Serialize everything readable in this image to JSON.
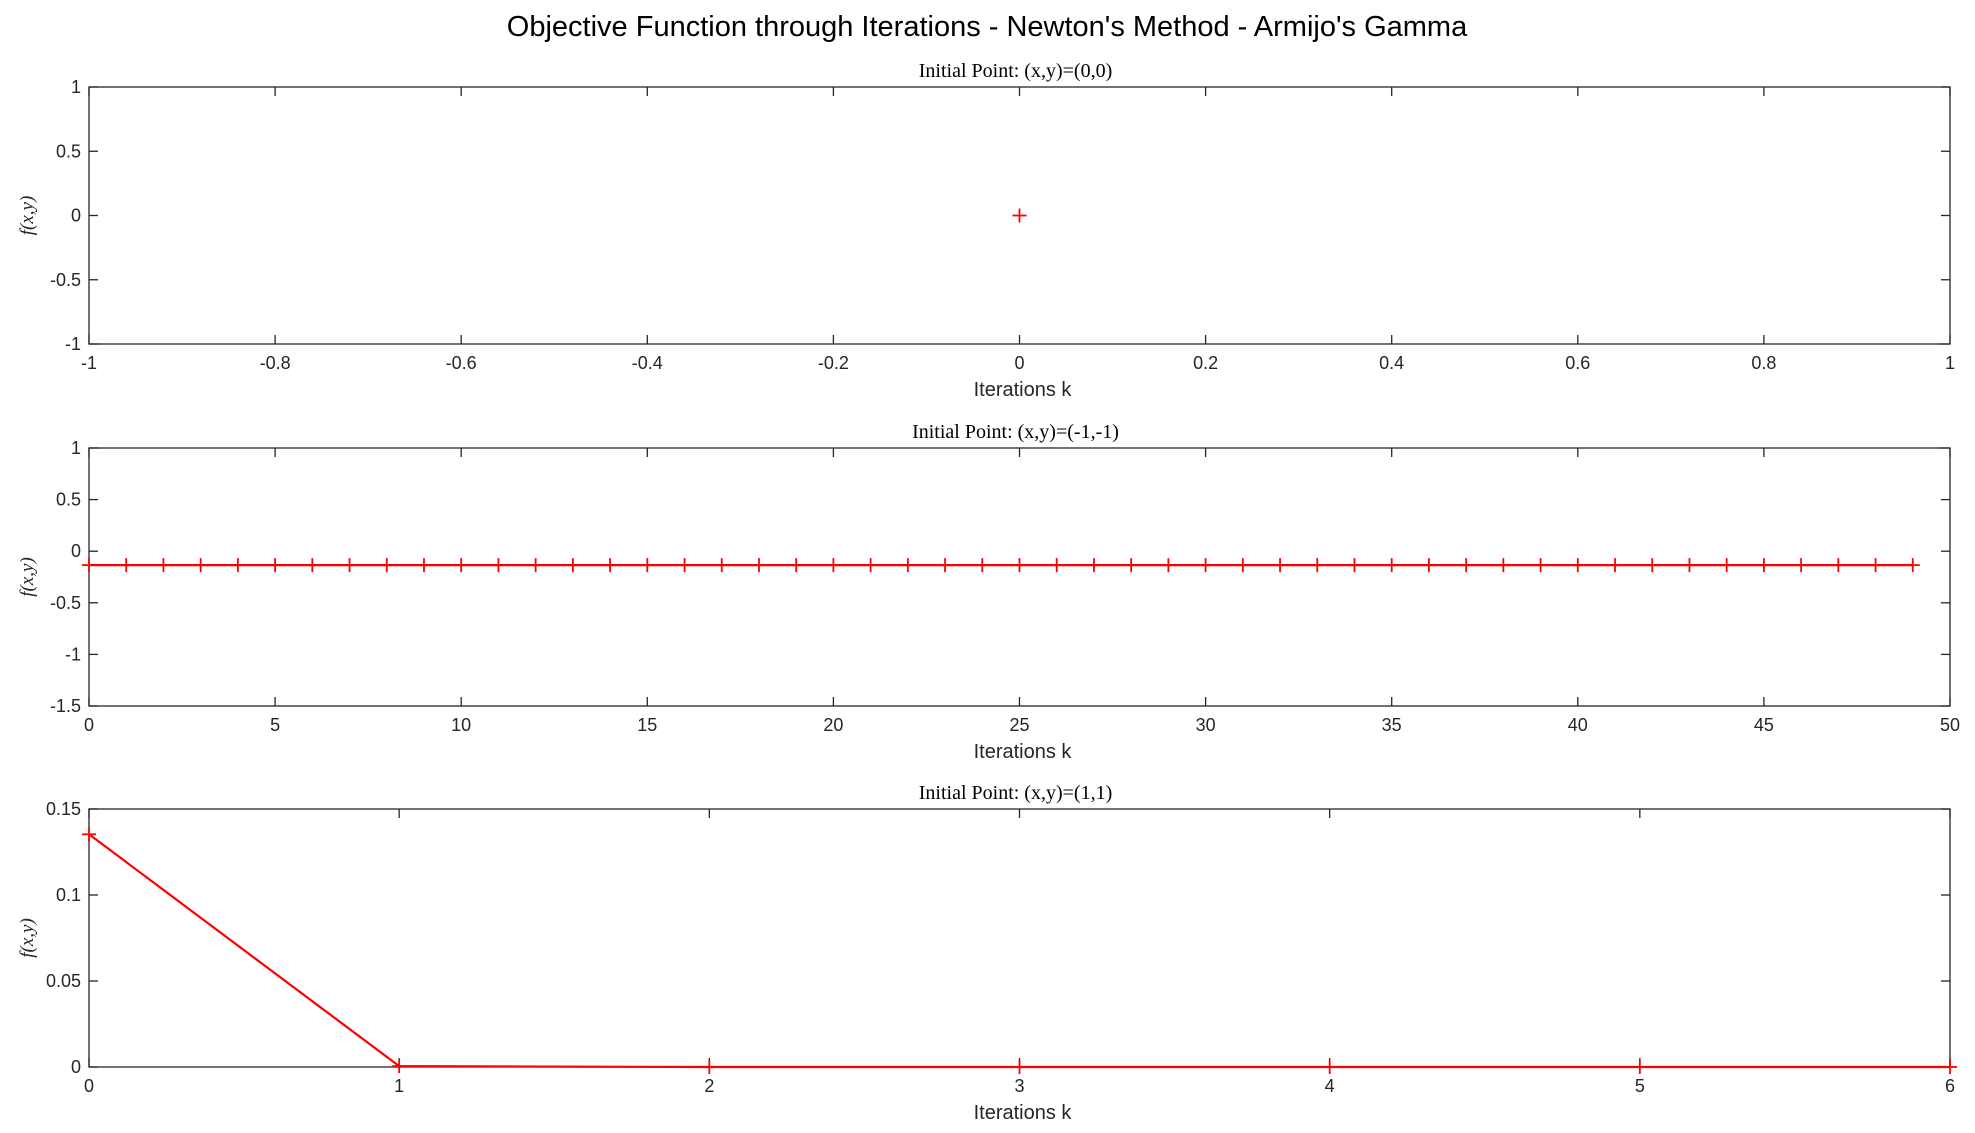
{
  "chart_data": {
    "suptitle": "Objective Function through Iterations - Newton's Method - Armijo's Gamma",
    "line_color": "#ff0000",
    "marker": "+",
    "panels": [
      {
        "type": "line",
        "title": "Initial Point: (x,y)=(0,0)",
        "xlabel": "Iterations k",
        "ylabel": "f(x,y)",
        "xlim": [
          -1,
          1
        ],
        "ylim": [
          -1,
          1
        ],
        "xticks": [
          "-1",
          "-0.8",
          "-0.6",
          "-0.4",
          "-0.2",
          "0",
          "0.2",
          "0.4",
          "0.6",
          "0.8",
          "1"
        ],
        "yticks": [
          "-1",
          "-0.5",
          "0",
          "0.5",
          "1"
        ],
        "x": [
          0
        ],
        "y": [
          0
        ]
      },
      {
        "type": "line",
        "title": "Initial Point: (x,y)=(-1,-1)",
        "xlabel": "Iterations k",
        "ylabel": "f(x,y)",
        "xlim": [
          0,
          50
        ],
        "ylim": [
          -1.5,
          1
        ],
        "xticks": [
          "0",
          "5",
          "10",
          "15",
          "20",
          "25",
          "30",
          "35",
          "40",
          "45",
          "50"
        ],
        "yticks": [
          "-1.5",
          "-1",
          "-0.5",
          "0",
          "0.5",
          "1"
        ],
        "x": [
          0,
          1,
          2,
          3,
          4,
          5,
          6,
          7,
          8,
          9,
          10,
          11,
          12,
          13,
          14,
          15,
          16,
          17,
          18,
          19,
          20,
          21,
          22,
          23,
          24,
          25,
          26,
          27,
          28,
          29,
          30,
          31,
          32,
          33,
          34,
          35,
          36,
          37,
          38,
          39,
          40,
          41,
          42,
          43,
          44,
          45,
          46,
          47,
          48,
          49
        ],
        "y": [
          -0.135,
          -0.135,
          -0.135,
          -0.135,
          -0.135,
          -0.135,
          -0.135,
          -0.135,
          -0.135,
          -0.135,
          -0.135,
          -0.135,
          -0.135,
          -0.135,
          -0.135,
          -0.135,
          -0.135,
          -0.135,
          -0.135,
          -0.135,
          -0.135,
          -0.135,
          -0.135,
          -0.135,
          -0.135,
          -0.135,
          -0.135,
          -0.135,
          -0.135,
          -0.135,
          -0.135,
          -0.135,
          -0.135,
          -0.135,
          -0.135,
          -0.135,
          -0.135,
          -0.135,
          -0.135,
          -0.135,
          -0.135,
          -0.135,
          -0.135,
          -0.135,
          -0.135,
          -0.135,
          -0.135,
          -0.135,
          -0.135,
          -0.135
        ]
      },
      {
        "type": "line",
        "title": "Initial Point: (x,y)=(1,1)",
        "xlabel": "Iterations k",
        "ylabel": "f(x,y)",
        "xlim": [
          0,
          6
        ],
        "ylim": [
          0,
          0.15
        ],
        "xticks": [
          "0",
          "1",
          "2",
          "3",
          "4",
          "5",
          "6"
        ],
        "yticks": [
          "0",
          "0.05",
          "0.1",
          "0.15"
        ],
        "x": [
          0,
          1,
          2,
          3,
          4,
          5,
          6
        ],
        "y": [
          0.1353,
          0.0005,
          0.0,
          0.0,
          0.0,
          0.0,
          0.0
        ]
      }
    ]
  }
}
